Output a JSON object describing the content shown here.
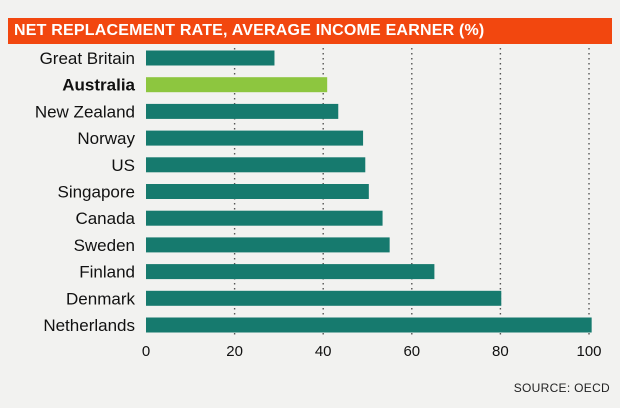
{
  "chart_data": {
    "type": "bar",
    "orientation": "horizontal",
    "title": "NET REPLACEMENT RATE, AVERAGE INCOME EARNER (%)",
    "categories": [
      "Great Britain",
      "Australia",
      "New Zealand",
      "Norway",
      "US",
      "Singapore",
      "Canada",
      "Sweden",
      "Finland",
      "Denmark",
      "Netherlands"
    ],
    "values": [
      29,
      40.9,
      43.4,
      49,
      49.5,
      50.3,
      53.4,
      55,
      65.1,
      80.2,
      100.6
    ],
    "highlight": "Australia",
    "xlim": [
      0,
      100
    ],
    "xticks": [
      0,
      20,
      40,
      60,
      80,
      100
    ],
    "grid": "vertical-dotted",
    "source": "SOURCE: OECD",
    "colors": {
      "bar": "#167a6e",
      "highlight": "#8dc63f",
      "title_bg": "#f2470f"
    }
  }
}
